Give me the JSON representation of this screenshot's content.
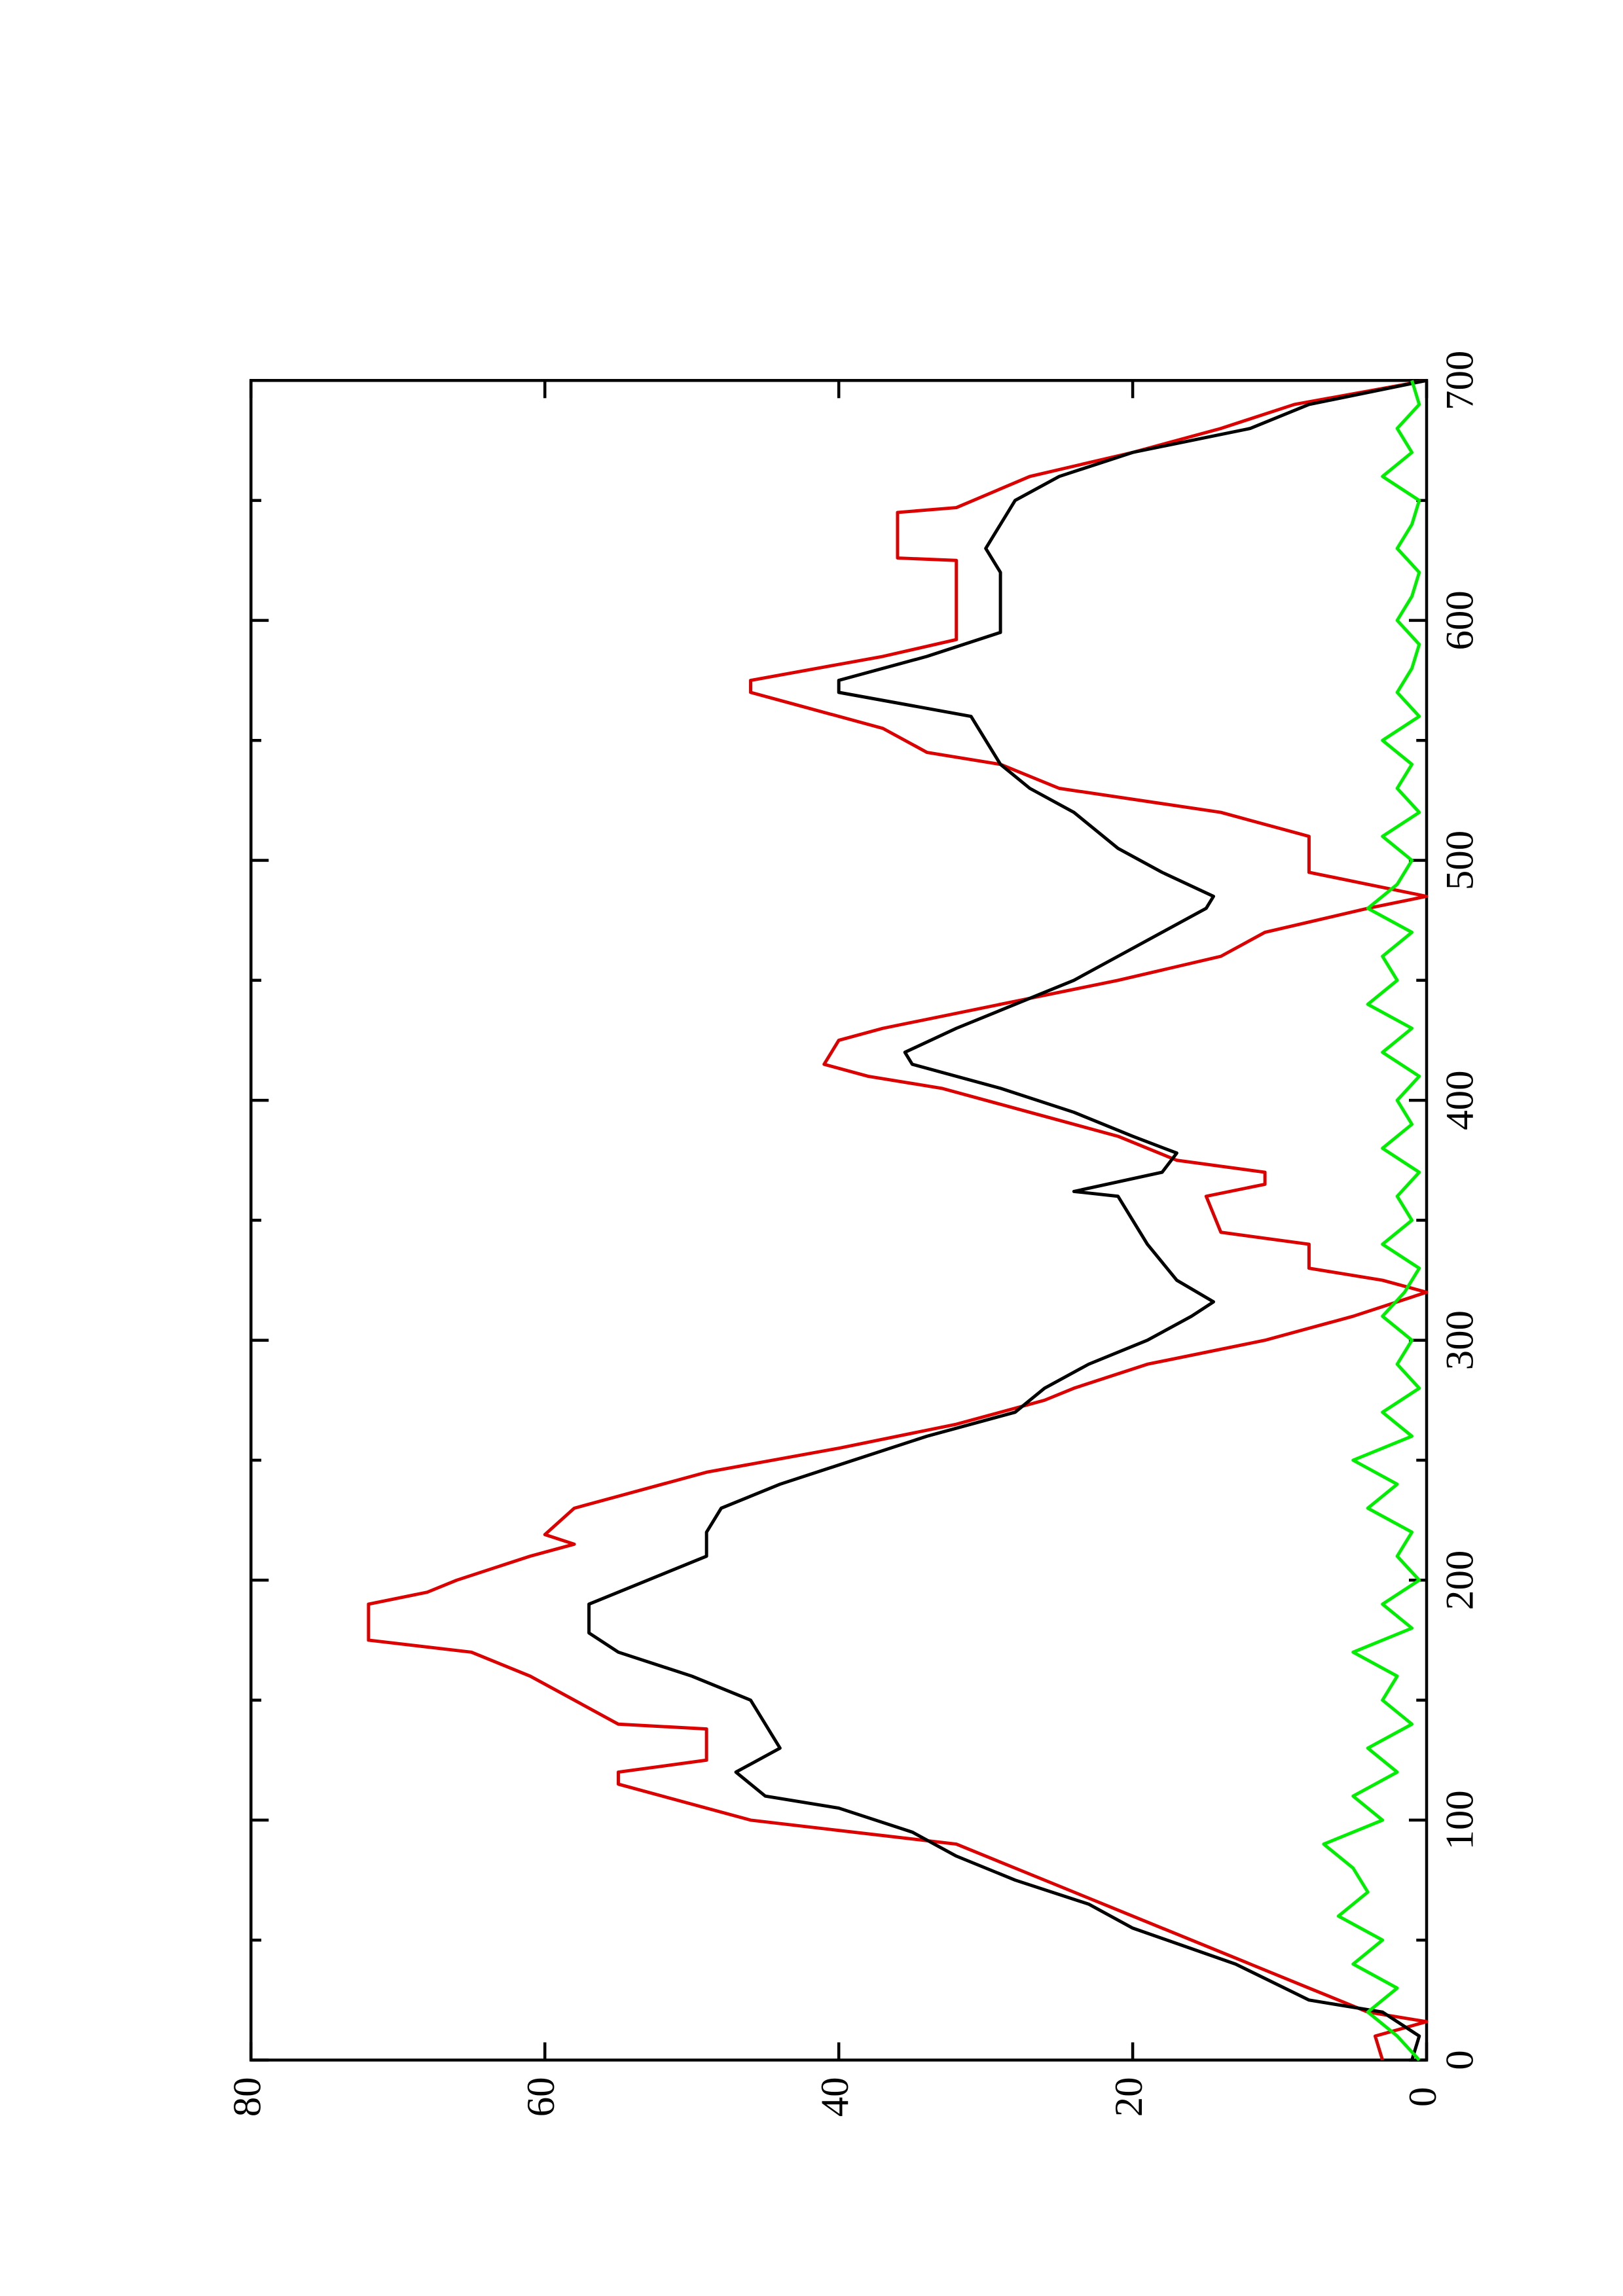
{
  "chart_data": {
    "type": "line",
    "xlim": [
      0,
      700
    ],
    "xticks": [
      0,
      100,
      200,
      300,
      400,
      500,
      600,
      700
    ],
    "xminor_ticks": [
      50,
      150,
      250,
      350,
      450,
      550,
      650
    ],
    "ylim": [
      0,
      80
    ],
    "yticks": [
      0,
      20,
      40,
      60,
      80
    ],
    "series": [
      {
        "color": "#dd0000",
        "x": [
          0,
          10,
          16,
          20,
          30,
          40,
          50,
          60,
          70,
          80,
          90,
          100,
          115,
          120,
          125,
          138,
          140,
          150,
          160,
          170,
          175,
          190,
          195,
          200,
          210,
          215,
          219,
          230,
          235,
          245,
          255,
          265,
          275,
          280,
          290,
          300,
          310,
          320,
          325,
          330,
          340,
          345,
          360,
          365,
          370,
          375,
          385,
          395,
          405,
          410,
          415,
          425,
          430,
          440,
          450,
          460,
          470,
          480,
          485,
          490,
          495,
          510,
          520,
          530,
          540,
          545,
          555,
          565,
          570,
          575,
          585,
          592,
          625,
          626,
          645,
          647,
          660,
          670,
          680,
          690,
          700
        ],
        "values": [
          3,
          3.5,
          0,
          4,
          8,
          12,
          16,
          20,
          24,
          28,
          32,
          46,
          55,
          55,
          49,
          49,
          55,
          58,
          61,
          65,
          72,
          72,
          68,
          66,
          61,
          58,
          60,
          58,
          55,
          49,
          40,
          32,
          26,
          24,
          19,
          11,
          5,
          0,
          3,
          8,
          8,
          14,
          15,
          11,
          11,
          17,
          21,
          27,
          33,
          38,
          41,
          40,
          37,
          29,
          21,
          14,
          11,
          4,
          0,
          4,
          8,
          8,
          14,
          25,
          29,
          34,
          37,
          43,
          46,
          46,
          37,
          32,
          32,
          36,
          36,
          32,
          27,
          20,
          14,
          9,
          0
        ]
      },
      {
        "color": "#000000",
        "x": [
          0,
          10,
          20,
          25,
          40,
          55,
          65,
          75,
          85,
          95,
          105,
          110,
          120,
          130,
          140,
          150,
          160,
          170,
          178,
          190,
          200,
          210,
          220,
          230,
          240,
          250,
          260,
          270,
          280,
          290,
          300,
          310,
          316,
          325,
          340,
          350,
          360,
          362,
          370,
          378,
          385,
          395,
          405,
          415,
          420,
          430,
          440,
          450,
          460,
          470,
          480,
          485,
          495,
          505,
          520,
          530,
          540,
          550,
          560,
          570,
          575,
          585,
          595,
          610,
          620,
          630,
          640,
          650,
          660,
          670,
          680,
          690,
          700
        ],
        "values": [
          1,
          0.5,
          3,
          8,
          13,
          20,
          23,
          28,
          32,
          35,
          40,
          45,
          47,
          44,
          45,
          46,
          50,
          55,
          57,
          57,
          53,
          49,
          49,
          48,
          44,
          39,
          34,
          28,
          26,
          23,
          19,
          16,
          14.5,
          17,
          19,
          20,
          21,
          24,
          18,
          17,
          20,
          24,
          29,
          35,
          35.5,
          32,
          28,
          24,
          21,
          18,
          15,
          14.5,
          18,
          21,
          24,
          27,
          29,
          30,
          31,
          40,
          40,
          34,
          29,
          29,
          29,
          30,
          29,
          28,
          25,
          20,
          12,
          8,
          0
        ]
      },
      {
        "color": "#00ee00",
        "x": [
          0,
          10,
          20,
          30,
          40,
          50,
          60,
          70,
          80,
          90,
          100,
          110,
          120,
          130,
          140,
          150,
          160,
          170,
          180,
          190,
          200,
          210,
          220,
          230,
          240,
          250,
          260,
          270,
          280,
          290,
          300,
          310,
          320,
          330,
          340,
          350,
          360,
          370,
          380,
          390,
          400,
          410,
          420,
          430,
          440,
          450,
          460,
          470,
          480,
          490,
          500,
          510,
          520,
          530,
          540,
          550,
          560,
          570,
          580,
          590,
          600,
          610,
          620,
          630,
          640,
          650,
          660,
          670,
          680,
          690,
          700
        ],
        "values": [
          0.5,
          2,
          4,
          2,
          5,
          3,
          6,
          4,
          5,
          7,
          3,
          5,
          2,
          4,
          1,
          3,
          2,
          5,
          1,
          3,
          0.5,
          2,
          1,
          4,
          2,
          5,
          1,
          3,
          0.5,
          2,
          1,
          3,
          1.5,
          0.5,
          3,
          1,
          2,
          0.5,
          3,
          1,
          2,
          0.5,
          3,
          1,
          4,
          2,
          3,
          1,
          4,
          2,
          1,
          3,
          0.5,
          2,
          1,
          3,
          0.5,
          2,
          1,
          0.5,
          2,
          1,
          0.5,
          2,
          1,
          0.5,
          3,
          1,
          2,
          0.5,
          1
        ]
      }
    ]
  }
}
